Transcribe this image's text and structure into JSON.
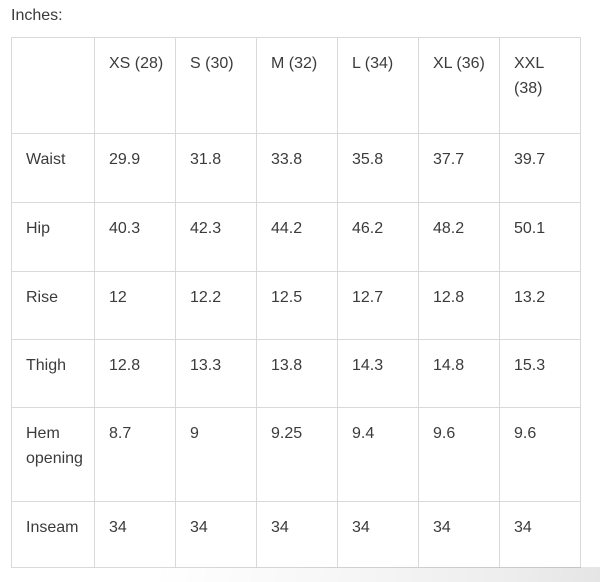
{
  "page": {
    "units_label": "Inches:"
  },
  "colors": {
    "text": "#3b3b3b",
    "border": "#d9d9d9",
    "background": "#ffffff"
  },
  "table": {
    "columns": [
      "",
      "XS (28)",
      "S (30)",
      "M (32)",
      "L (34)",
      "XL (36)",
      "XXL (38)"
    ],
    "rows": [
      {
        "label": "Waist",
        "values": [
          "29.9",
          "31.8",
          "33.8",
          "35.8",
          "37.7",
          "39.7"
        ]
      },
      {
        "label": "Hip",
        "values": [
          "40.3",
          "42.3",
          "44.2",
          "46.2",
          "48.2",
          "50.1"
        ]
      },
      {
        "label": "Rise",
        "values": [
          "12",
          "12.2",
          "12.5",
          "12.7",
          "12.8",
          "13.2"
        ]
      },
      {
        "label": "Thigh",
        "values": [
          "12.8",
          "13.3",
          "13.8",
          "14.3",
          "14.8",
          "15.3"
        ]
      },
      {
        "label": "Hem opening",
        "values": [
          "8.7",
          "9",
          "9.25",
          "9.4",
          "9.6",
          "9.6"
        ]
      },
      {
        "label": "Inseam",
        "values": [
          "34",
          "34",
          "34",
          "34",
          "34",
          "34"
        ]
      }
    ]
  }
}
